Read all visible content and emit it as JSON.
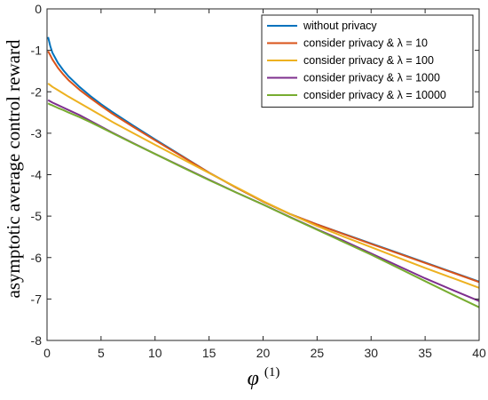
{
  "chart_data": {
    "type": "line",
    "xlabel": "φ",
    "xlabel_superscript": "(1)",
    "ylabel": "asymptotic average control reward",
    "xlim": [
      0,
      40
    ],
    "ylim": [
      -8,
      0
    ],
    "xticks": [
      "0",
      "5",
      "10",
      "15",
      "20",
      "25",
      "30",
      "35",
      "40"
    ],
    "yticks": [
      "0",
      "-1",
      "-2",
      "-3",
      "-4",
      "-5",
      "-6",
      "-7",
      "-8"
    ],
    "grid": false,
    "legend_position": "top-right",
    "x": [
      0.1,
      0.3,
      0.5,
      1,
      1.5,
      2,
      3,
      4,
      5,
      6,
      8,
      10,
      12.5,
      15,
      17.5,
      20,
      22.5,
      25,
      27.5,
      30,
      32.5,
      35,
      37.5,
      40
    ],
    "series": [
      {
        "name": "without privacy",
        "color": "#0072BD",
        "values": [
          -0.68,
          -0.9,
          -1.06,
          -1.3,
          -1.48,
          -1.63,
          -1.88,
          -2.1,
          -2.3,
          -2.48,
          -2.82,
          -3.15,
          -3.55,
          -3.95,
          -4.31,
          -4.65,
          -4.95,
          -5.2,
          -5.43,
          -5.66,
          -5.89,
          -6.12,
          -6.35,
          -6.58
        ]
      },
      {
        "name": "consider privacy & λ = 10",
        "color": "#D95319",
        "values": [
          -1.02,
          -1.12,
          -1.22,
          -1.42,
          -1.58,
          -1.72,
          -1.95,
          -2.15,
          -2.34,
          -2.52,
          -2.85,
          -3.17,
          -3.56,
          -3.95,
          -4.31,
          -4.65,
          -4.95,
          -5.2,
          -5.44,
          -5.67,
          -5.9,
          -6.13,
          -6.36,
          -6.59
        ]
      },
      {
        "name": "consider privacy & λ = 100",
        "color": "#EDB120",
        "values": [
          -1.8,
          -1.84,
          -1.88,
          -1.96,
          -2.04,
          -2.12,
          -2.27,
          -2.42,
          -2.57,
          -2.72,
          -3.0,
          -3.28,
          -3.62,
          -3.96,
          -4.3,
          -4.64,
          -4.95,
          -5.24,
          -5.5,
          -5.75,
          -6.0,
          -6.25,
          -6.49,
          -6.73
        ]
      },
      {
        "name": "consider privacy & λ = 1000",
        "color": "#7E2F8E",
        "values": [
          -2.2,
          -2.23,
          -2.26,
          -2.32,
          -2.38,
          -2.44,
          -2.56,
          -2.7,
          -2.84,
          -2.98,
          -3.24,
          -3.5,
          -3.81,
          -4.12,
          -4.43,
          -4.72,
          -5.02,
          -5.32,
          -5.6,
          -5.9,
          -6.2,
          -6.5,
          -6.78,
          -7.05
        ]
      },
      {
        "name": "consider privacy & λ = 10000",
        "color": "#77AC30",
        "values": [
          -2.28,
          -2.31,
          -2.33,
          -2.39,
          -2.44,
          -2.5,
          -2.61,
          -2.73,
          -2.86,
          -2.99,
          -3.25,
          -3.5,
          -3.82,
          -4.13,
          -4.43,
          -4.72,
          -5.03,
          -5.33,
          -5.63,
          -5.93,
          -6.25,
          -6.57,
          -6.89,
          -7.2
        ]
      }
    ]
  }
}
